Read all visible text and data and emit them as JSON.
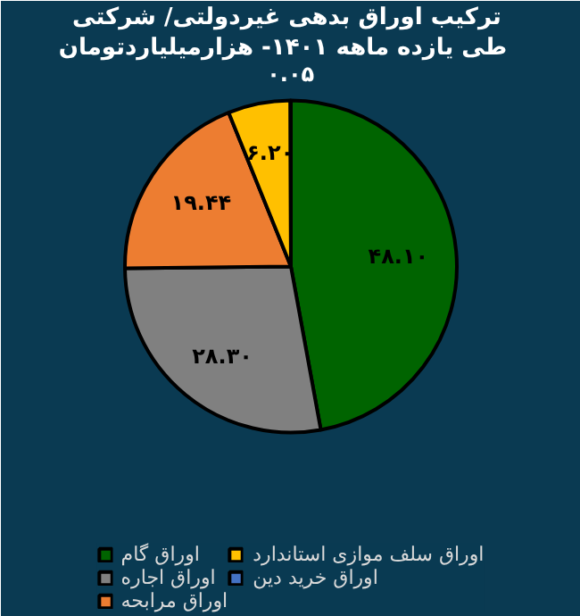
{
  "chart_data": {
    "type": "pie",
    "title": "ترکیب  اوراق بدهی غیردولتی/ شرکتی",
    "subtitle": "طی  یازده ماهه  ۱۴۰۱- هزارمیلیاردتومان",
    "categories": [
      "اوراق گام",
      "اوراق اجاره",
      "اوراق مرابحه",
      "اوراق سلف موازی استاندارد",
      "اوراق خرید دین"
    ],
    "values": [
      48.1,
      28.3,
      19.44,
      6.2,
      0.05
    ],
    "colors": [
      "#006400",
      "#808080",
      "#ed7d31",
      "#ffc000",
      "#4472c4"
    ],
    "value_labels": [
      "۴۸.۱۰",
      "۲۸.۳۰",
      "۱۹.۴۴",
      "۶.۲۰",
      "۰.۰۵"
    ],
    "legend": "bottom"
  }
}
